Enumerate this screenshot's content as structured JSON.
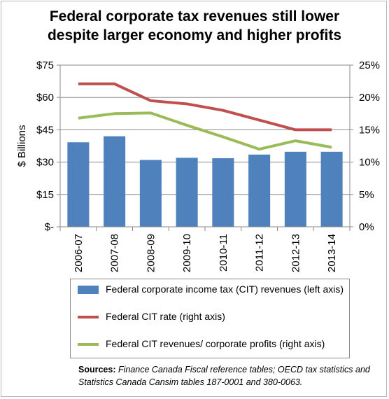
{
  "chart_data": {
    "type": "bar",
    "title_line1": "Federal corporate tax revenues still lower",
    "title_line2": "despite larger economy and higher profits",
    "ylabel": "$ Billions",
    "categories": [
      "2006-07",
      "2007-08",
      "2008-09",
      "2009-10",
      "2010-11",
      "2011-12",
      "2012-13",
      "2013-14"
    ],
    "left_axis": {
      "min": 0,
      "max": 75,
      "ticks": [
        0,
        15,
        30,
        45,
        60,
        75
      ],
      "tick_labels": [
        "$-",
        "$15",
        "$30",
        "$45",
        "$60",
        "$75"
      ]
    },
    "right_axis": {
      "min": 0,
      "max": 25,
      "ticks": [
        0,
        5,
        10,
        15,
        20,
        25
      ],
      "tick_labels": [
        "0%",
        "5%",
        "10%",
        "15%",
        "20%",
        "25%"
      ]
    },
    "grid": true,
    "legend_position": "bottom",
    "series": [
      {
        "name": "Federal corporate income tax (CIT) revenues (left axis)",
        "type": "bar",
        "axis": "left",
        "color": "#4f81bd",
        "values": [
          39.2,
          42.0,
          31.0,
          32.0,
          31.8,
          33.5,
          34.8,
          34.8
        ]
      },
      {
        "name": "Federal CIT rate (right axis)",
        "type": "line",
        "axis": "right",
        "color": "#c0504d",
        "values": [
          22.1,
          22.1,
          19.5,
          19.0,
          18.0,
          16.5,
          15.0,
          15.0
        ]
      },
      {
        "name": "Federal CIT revenues/ corporate profits (right axis)",
        "type": "line",
        "axis": "right",
        "color": "#9bbb59",
        "values": [
          16.8,
          17.5,
          17.6,
          15.7,
          13.9,
          12.0,
          13.3,
          12.3
        ]
      }
    ]
  },
  "source": {
    "heading": "Sources:",
    "text": "Finance Canada Fiscal reference tables; OECD tax statistics and Statistics Canada Cansim tables 187-0001 and 380-0063."
  }
}
